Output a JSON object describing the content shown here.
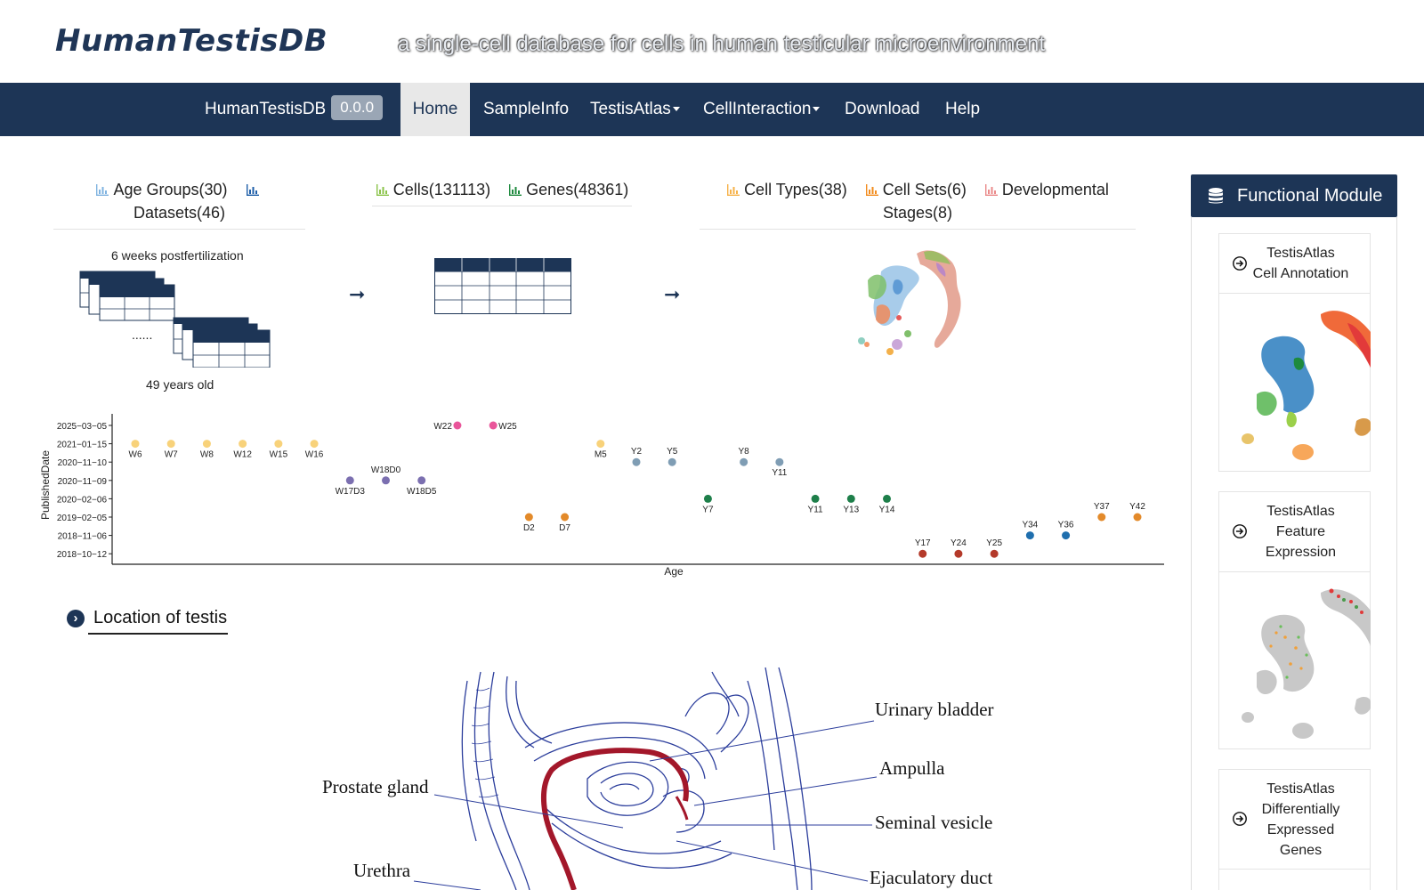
{
  "header": {
    "brand": "HumanTestisDB",
    "tagline": "a single-cell database for cells in human testicular microenvironment"
  },
  "nav": {
    "brand": "HumanTestisDB",
    "version": "0.0.0",
    "items": [
      "Home",
      "SampleInfo",
      "TestisAtlas",
      "CellInteraction",
      "Download",
      "Help"
    ],
    "active": "Home",
    "home_icon": "home-icon"
  },
  "stats": {
    "age_groups": "Age Groups(30)",
    "datasets": "Datasets(46)",
    "cells": "Cells(131113)",
    "genes": "Genes(48361)",
    "cell_types": "Cell Types(38)",
    "cell_sets": "Cell Sets(6)",
    "dev_stages_1": "Developmental",
    "dev_stages_2": "Stages(8)",
    "icon": "bar-chart-icon",
    "icon_colors": [
      "#7fb3e0",
      "#1f5fa8",
      "#8bc34a",
      "#1e8a3e",
      "#f6b24a",
      "#f28c1e",
      "#ea8a8a"
    ]
  },
  "flow": {
    "top_label": "6 weeks postfertilization",
    "dots": "......",
    "bottom_label": "49 years old",
    "arrow": "➞"
  },
  "chart_data": {
    "type": "scatter",
    "xlabel": "Age",
    "ylabel": "PublishedDate",
    "y_ticks": [
      "2025−03−05",
      "2021−01−15",
      "2020−11−10",
      "2020−11−09",
      "2020−02−06",
      "2019−02−05",
      "2018−11−06",
      "2018−10−12"
    ],
    "x": [
      "W6",
      "W7",
      "W8",
      "W12",
      "W15",
      "W16",
      "W17D3",
      "W18D0",
      "W18D5",
      "W22",
      "W25",
      "D2",
      "D7",
      "M5",
      "Y2",
      "Y5",
      "Y7",
      "Y8",
      "Y11",
      "Y11",
      "Y13",
      "Y14",
      "Y17",
      "Y24",
      "Y25",
      "Y34",
      "Y36",
      "Y37",
      "Y42"
    ],
    "series": [
      {
        "y": "2021−01−15",
        "color": "#f8d27a",
        "x": [
          "W6",
          "W7",
          "W8",
          "W12",
          "W15",
          "W16",
          "M5"
        ]
      },
      {
        "y": "2020−11−09",
        "color": "#7b6fb0",
        "x": [
          "W17D3",
          "W18D0",
          "W18D5"
        ]
      },
      {
        "y": "2025−03−05",
        "color": "#e9559a",
        "x": [
          "W22",
          "W25"
        ]
      },
      {
        "y": "2019−02−05",
        "color": "#e38a2a",
        "x": [
          "D2",
          "D7"
        ]
      },
      {
        "y": "2020−11−10",
        "color": "#7f9db4",
        "x": [
          "Y2",
          "Y5",
          "Y8",
          "Y11"
        ]
      },
      {
        "y": "2020−02−06",
        "color": "#1e7f4a",
        "x": [
          "Y7",
          "Y11",
          "Y13",
          "Y14"
        ]
      },
      {
        "y": "2018−10−12",
        "color": "#b43a2a",
        "x": [
          "Y17",
          "Y24",
          "Y25"
        ]
      },
      {
        "y": "2018−11−06",
        "color": "#1f6fae",
        "x": [
          "Y34",
          "Y36"
        ]
      },
      {
        "y": "2019−02−05",
        "color": "#e38a2a",
        "x": [
          "Y37",
          "Y42"
        ]
      }
    ]
  },
  "location": {
    "title": "Location of testis",
    "icon": "chevron-right-circle-icon",
    "labels": [
      "Urinary bladder",
      "Ampulla",
      "Prostate gland",
      "Seminal vesicle",
      "Urethra",
      "Ejaculatory duct"
    ]
  },
  "functional": {
    "title": "Functional Module",
    "icon": "database-icon",
    "cards": [
      {
        "lines": [
          "TestisAtlas",
          "Cell Annotation"
        ],
        "icon": "arrow-right-circle-icon"
      },
      {
        "lines": [
          "TestisAtlas",
          "Feature",
          "Expression"
        ],
        "icon": "arrow-right-circle-icon"
      },
      {
        "lines": [
          "TestisAtlas",
          "Differentially",
          "Expressed",
          "Genes"
        ],
        "icon": "arrow-right-circle-icon"
      }
    ]
  }
}
